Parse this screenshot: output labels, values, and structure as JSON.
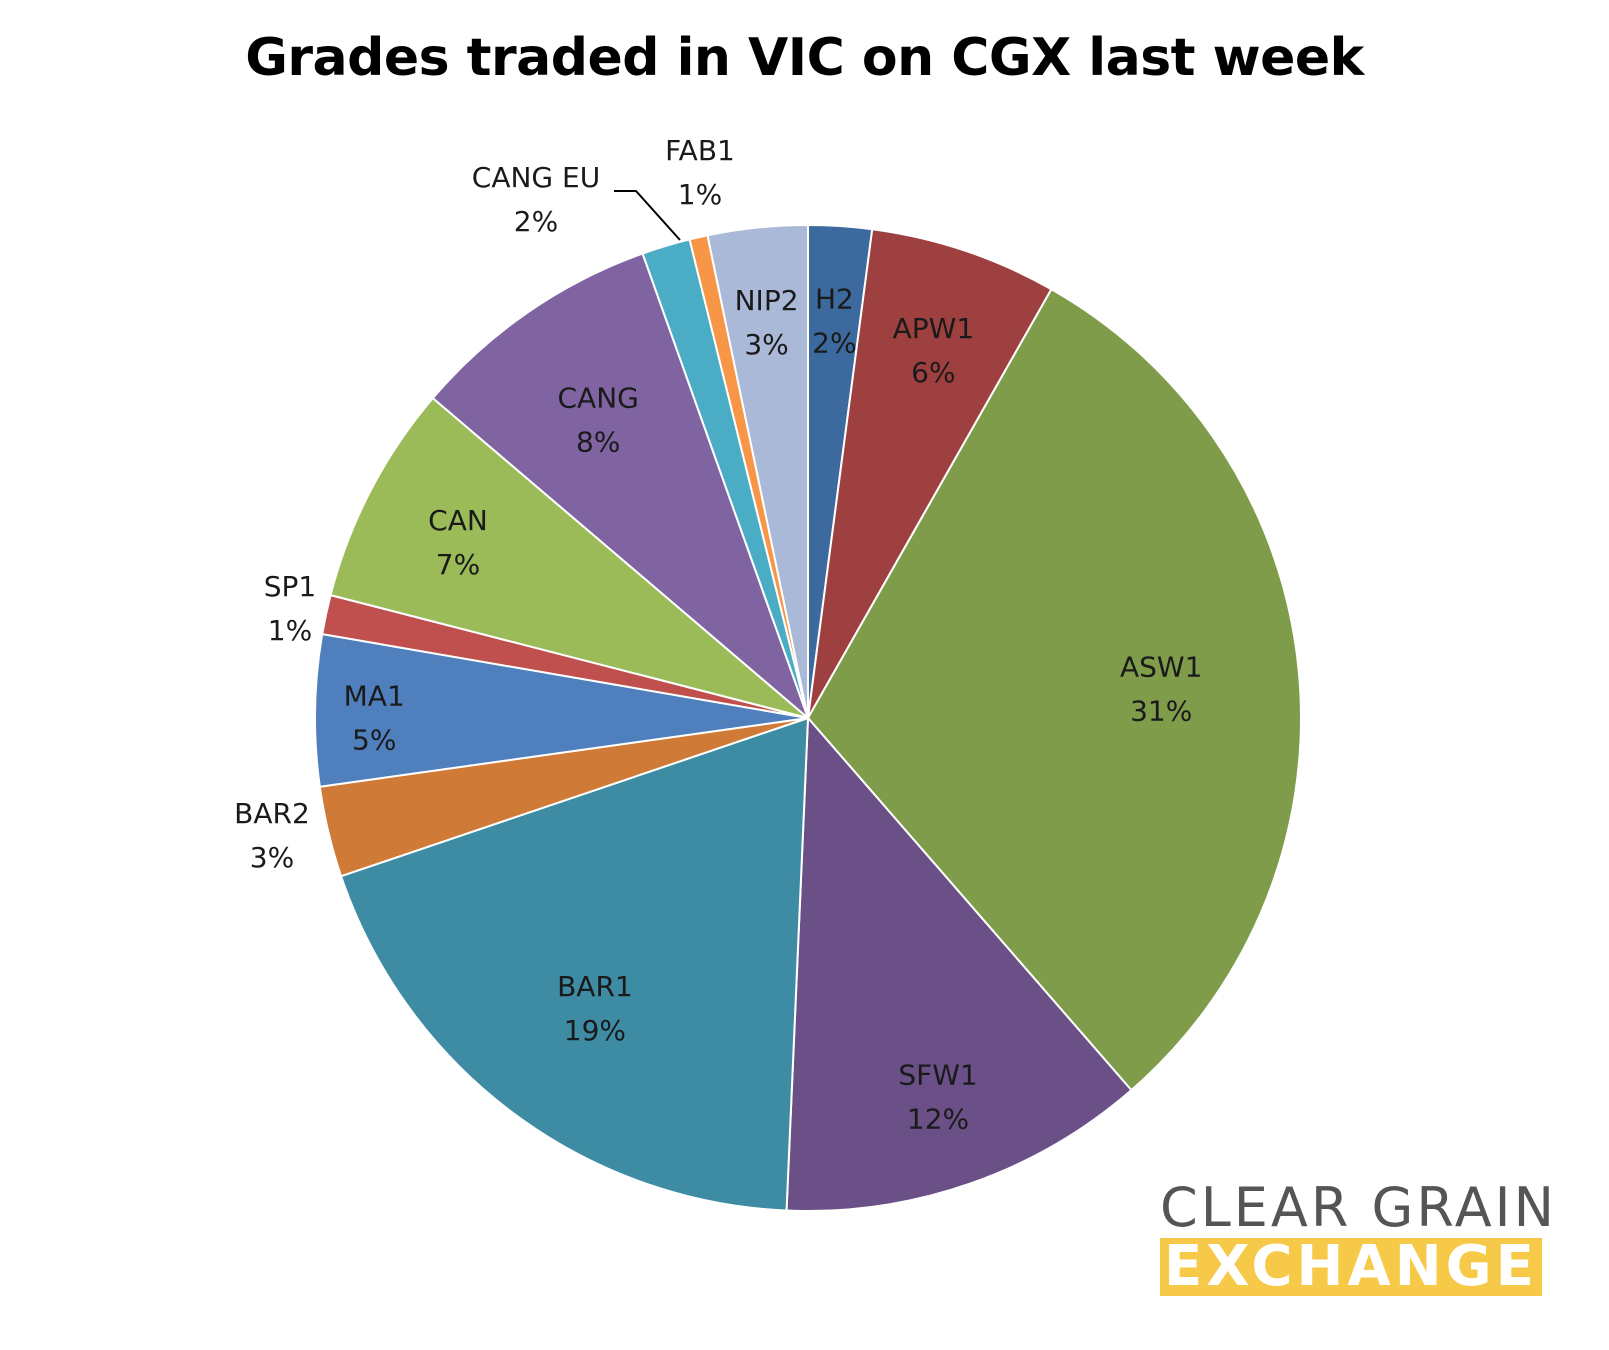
{
  "chart_data": {
    "type": "pie",
    "title": "Grades traded in VIC on CGX last week",
    "start_angle_deg": 0,
    "direction": "clockwise",
    "slices": [
      {
        "label": "H2",
        "pct_label": "2%",
        "value": 2.1,
        "color": "#3d6a9e"
      },
      {
        "label": "APW1",
        "pct_label": "6%",
        "value": 6.2,
        "color": "#9e4040"
      },
      {
        "label": "ASW1",
        "pct_label": "31%",
        "value": 30.7,
        "color": "#7f9c4a"
      },
      {
        "label": "SFW1",
        "pct_label": "12%",
        "value": 12.2,
        "color": "#6a5087"
      },
      {
        "label": "BAR1",
        "pct_label": "19%",
        "value": 19.3,
        "color": "#3d8ca3"
      },
      {
        "label": "BAR2",
        "pct_label": "3%",
        "value": 3.0,
        "color": "#d07a38"
      },
      {
        "label": "MA1",
        "pct_label": "5%",
        "value": 5.0,
        "color": "#4f80bd"
      },
      {
        "label": "SP1",
        "pct_label": "1%",
        "value": 1.3,
        "color": "#c0504d"
      },
      {
        "label": "CAN",
        "pct_label": "7%",
        "value": 7.3,
        "color": "#9bbb59"
      },
      {
        "label": "CANG",
        "pct_label": "8%",
        "value": 8.4,
        "color": "#8064a2"
      },
      {
        "label": "CANG EU",
        "pct_label": "2%",
        "value": 1.6,
        "color": "#4bacc6"
      },
      {
        "label": "FAB1",
        "pct_label": "1%",
        "value": 0.6,
        "color": "#f79646"
      },
      {
        "label": "NIP2",
        "pct_label": "3%",
        "value": 3.3,
        "color": "#aab9d8"
      }
    ]
  },
  "logo": {
    "line1": "CLEAR GRAIN",
    "line2": "EXCHANGE"
  }
}
